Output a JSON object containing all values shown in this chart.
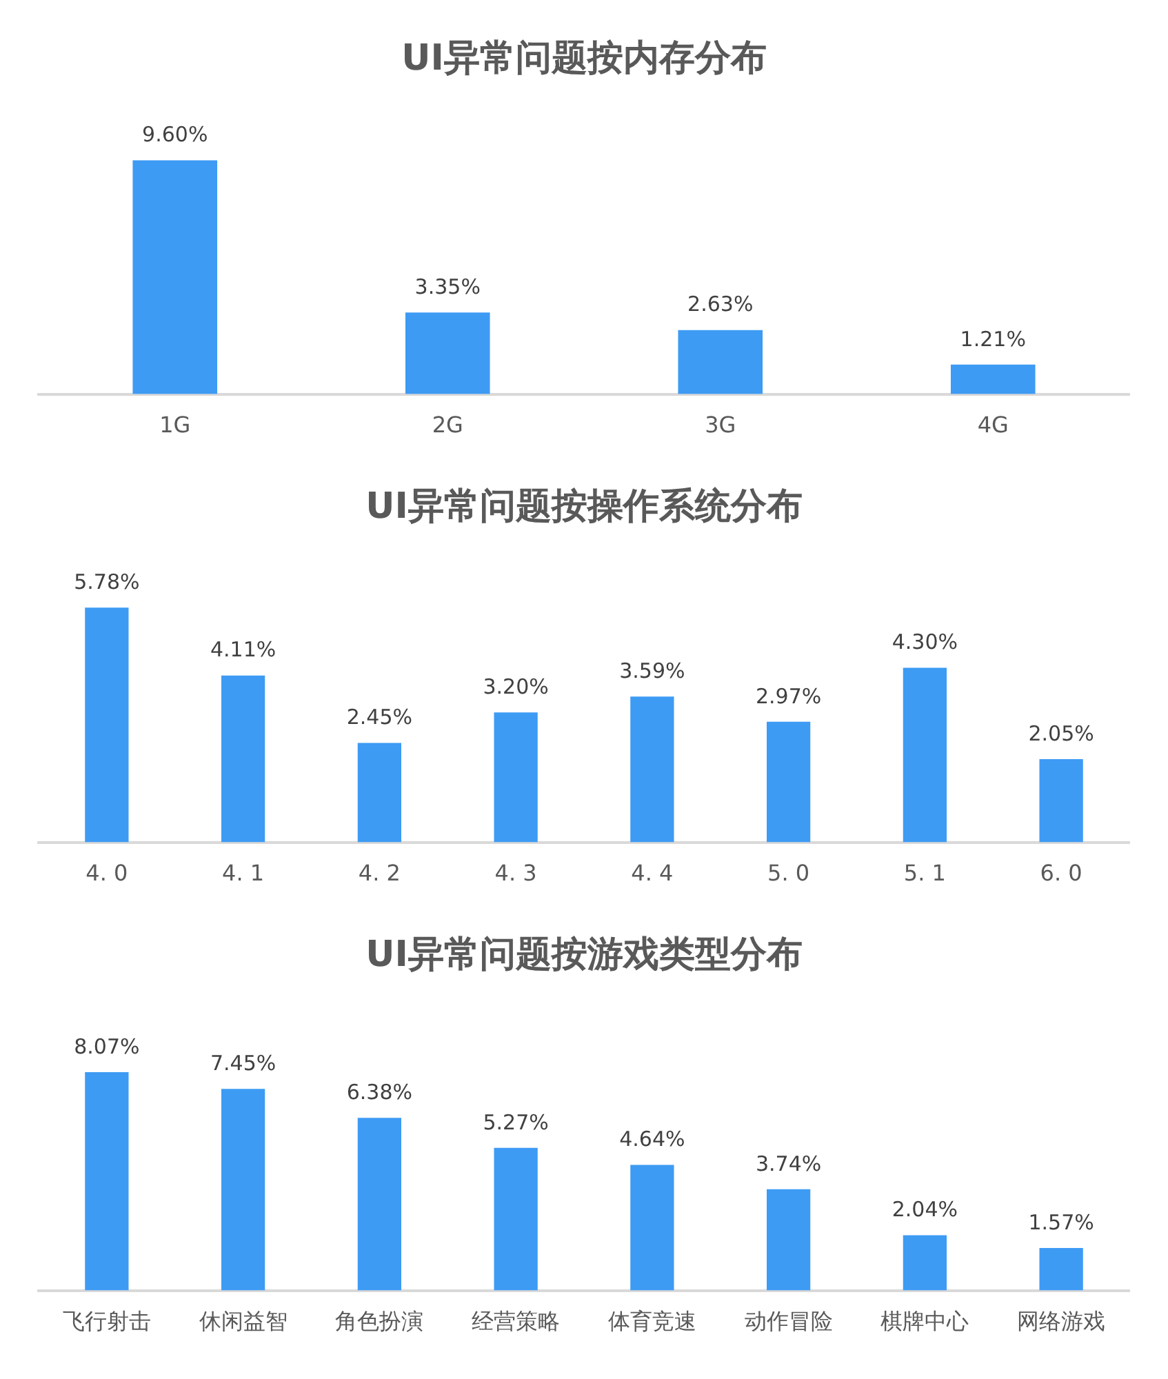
{
  "chart_data": [
    {
      "type": "bar",
      "title": "UI异常问题按内存分布",
      "categories": [
        "1G",
        "2G",
        "3G",
        "4G"
      ],
      "values": [
        9.6,
        3.35,
        2.63,
        1.21
      ],
      "value_labels": [
        "9.60%",
        "3.35%",
        "2.63%",
        "1.21%"
      ],
      "color": "#3d9bf4",
      "grid": false,
      "legend": false
    },
    {
      "type": "bar",
      "title": "UI异常问题按操作系统分布",
      "categories": [
        "4. 0",
        "4. 1",
        "4. 2",
        "4. 3",
        "4. 4",
        "5. 0",
        "5. 1",
        "6. 0"
      ],
      "values": [
        5.78,
        4.11,
        2.45,
        3.2,
        3.59,
        2.97,
        4.3,
        2.05
      ],
      "value_labels": [
        "5.78%",
        "4.11%",
        "2.45%",
        "3.20%",
        "3.59%",
        "2.97%",
        "4.30%",
        "2.05%"
      ],
      "color": "#3d9bf4",
      "grid": false,
      "legend": false
    },
    {
      "type": "bar",
      "title": "UI异常问题按游戏类型分布",
      "categories": [
        "飞行射击",
        "休闲益智",
        "角色扮演",
        "经营策略",
        "体育竞速",
        "动作冒险",
        "棋牌中心",
        "网络游戏"
      ],
      "values": [
        8.07,
        7.45,
        6.38,
        5.27,
        4.64,
        3.74,
        2.04,
        1.57
      ],
      "value_labels": [
        "8.07%",
        "7.45%",
        "6.38%",
        "5.27%",
        "4.64%",
        "3.74%",
        "2.04%",
        "1.57%"
      ],
      "color": "#3d9bf4",
      "grid": false,
      "legend": false
    }
  ]
}
